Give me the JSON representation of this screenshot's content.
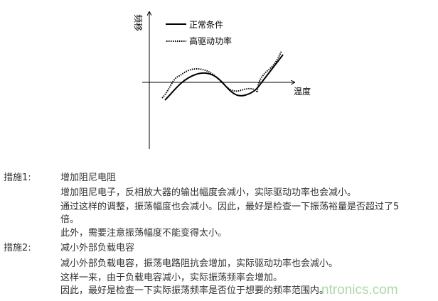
{
  "figure": {
    "y_axis_label": "频移",
    "x_axis_label": "温度",
    "legend": [
      {
        "label": "正常条件",
        "style": "solid"
      },
      {
        "label": "高驱动功率",
        "style": "dotted"
      }
    ],
    "line_color": "#000000"
  },
  "measures": [
    {
      "label": "措施1:",
      "title": "增加阻尼电阻",
      "lines": [
        "增加阻尼电子，反相放大器的输出幅度会减小，实际驱动功率也会减小。",
        "通过这样的调整，振荡幅度也会减小。因此，最好是检查一下振荡裕量是否超过了5",
        "倍。",
        "此外，需要注意振荡幅度不能变得太小。"
      ]
    },
    {
      "label": "措施2:",
      "title": "减小外部负载电容",
      "lines": [
        "减小外部负载电容，振荡电路阻抗会增加，实际驱动功率也会减小。",
        "这样一来，由于负载电容减小，实际振荡频率会增加。",
        "因此，最好是检查一下实际振荡频率是否位于想要的频率范围内。"
      ]
    }
  ],
  "watermark": "ntronics.com"
}
